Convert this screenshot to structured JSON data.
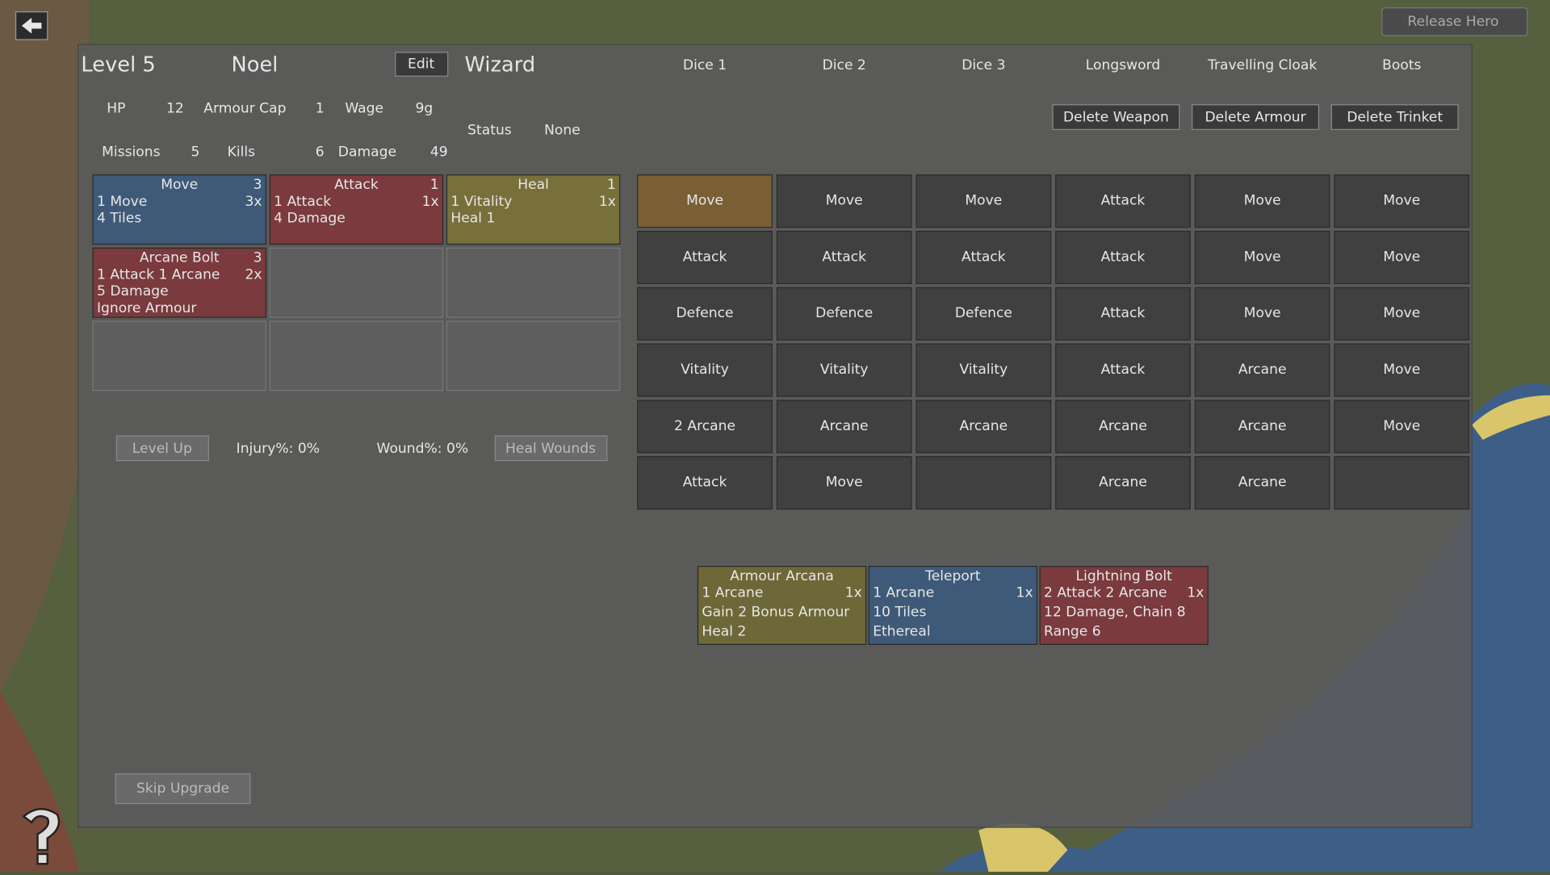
{
  "header": {
    "level": "Level 5",
    "name": "Noel",
    "edit": "Edit",
    "class": "Wizard"
  },
  "release_button": "Release Hero",
  "equipment_columns": [
    "Dice 1",
    "Dice 2",
    "Dice 3",
    "Longsword",
    "Travelling Cloak",
    "Boots"
  ],
  "delete_buttons": [
    "Delete Weapon",
    "Delete Armour",
    "Delete Trinket"
  ],
  "stats": [
    {
      "label": "HP",
      "value": 12
    },
    {
      "label": "Armour Cap",
      "value": 1
    },
    {
      "label": "Wage",
      "value": "9g"
    },
    {
      "label": "Status",
      "value": "None"
    },
    {
      "label": "Missions",
      "value": 5
    },
    {
      "label": "Kills",
      "value": 6
    },
    {
      "label": "Damage",
      "value": 49
    }
  ],
  "abilities": [
    {
      "title": "Move",
      "count": 3,
      "rate": "3x",
      "lines": [
        "1 Move",
        "4 Tiles"
      ],
      "color": "#3f5a78"
    },
    {
      "title": "Attack",
      "count": 1,
      "rate": "1x",
      "lines": [
        "1 Attack",
        "4 Damage"
      ],
      "color": "#7a3a3e"
    },
    {
      "title": "Heal",
      "count": 1,
      "rate": "1x",
      "lines": [
        "1 Vitality",
        "Heal 1"
      ],
      "color": "#77703a"
    },
    {
      "title": "Arcane Bolt",
      "count": 3,
      "rate": "2x",
      "lines": [
        "1 Attack 1 Arcane",
        "5 Damage",
        "Ignore Armour"
      ],
      "color": "#7a3a3e"
    },
    null,
    null,
    null,
    null,
    null
  ],
  "level_up": "Level Up",
  "injury": "Injury%: 0%",
  "wound": "Wound%: 0%",
  "heal_wounds": "Heal Wounds",
  "dice_faces": [
    [
      "Move",
      "Attack",
      "Defence",
      "Vitality",
      "2 Arcane",
      "Attack"
    ],
    [
      "Move",
      "Attack",
      "Defence",
      "Vitality",
      "Arcane",
      "Move"
    ],
    [
      "Move",
      "Attack",
      "Defence",
      "Vitality",
      "Arcane",
      null
    ],
    [
      "Attack",
      "Attack",
      "Attack",
      "Attack",
      "Arcane",
      "Arcane"
    ],
    [
      "Move",
      "Move",
      "Move",
      "Arcane",
      "Arcane",
      "Arcane"
    ],
    [
      "Move",
      "Move",
      "Move",
      "Move",
      "Move",
      null
    ]
  ],
  "upgrades": [
    {
      "title": "Armour Arcana",
      "rate": "1x",
      "lines": [
        "1 Arcane",
        "Gain 2 Bonus Armour",
        "Heal 2"
      ],
      "color": "#6e6737"
    },
    {
      "title": "Teleport",
      "rate": "1x",
      "lines": [
        "1 Arcane",
        "10 Tiles",
        "Ethereal"
      ],
      "color": "#3f5a78"
    },
    {
      "title": "Lightning Bolt",
      "rate": "1x",
      "lines": [
        "2 Attack 2 Arcane",
        "12 Damage, Chain 8",
        "Range 6"
      ],
      "color": "#7a3a3e"
    }
  ],
  "skip_upgrade": "Skip Upgrade"
}
